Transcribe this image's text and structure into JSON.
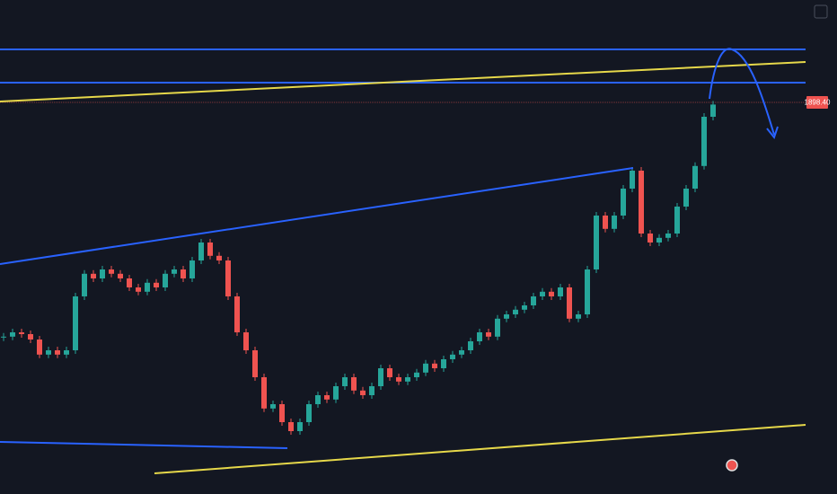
{
  "chart_data": {
    "type": "candlestick",
    "price_label": "1898.40",
    "values": [
      1833.8,
      1835,
      1834.5,
      1833,
      1828.8,
      1830,
      1828.8,
      1830,
      1845,
      1851.3,
      1850,
      1852.5,
      1851.3,
      1850,
      1847.5,
      1846.3,
      1848.8,
      1847.5,
      1851.3,
      1852.5,
      1850,
      1855,
      1860,
      1856.3,
      1855,
      1845,
      1835,
      1830,
      1822.5,
      1813.8,
      1815,
      1810,
      1807.5,
      1810,
      1815,
      1817.5,
      1816.3,
      1820,
      1822.5,
      1818.8,
      1817.5,
      1820,
      1825,
      1822.5,
      1821.3,
      1822.5,
      1823.8,
      1826.3,
      1825,
      1827.5,
      1828.8,
      1830,
      1832.5,
      1835,
      1833.8,
      1838.8,
      1840,
      1841.3,
      1842.5,
      1845,
      1846.3,
      1845,
      1847.5,
      1838.8,
      1840,
      1852.5,
      1867.5,
      1863.8,
      1867.5,
      1875,
      1880,
      1862.5,
      1860,
      1861.3,
      1862.5,
      1870,
      1875,
      1881.3,
      1895,
      1898.4
    ],
    "ylim": [
      1790,
      1927.5
    ],
    "up_color": "#26a69a",
    "down_color": "#ef5350"
  }
}
